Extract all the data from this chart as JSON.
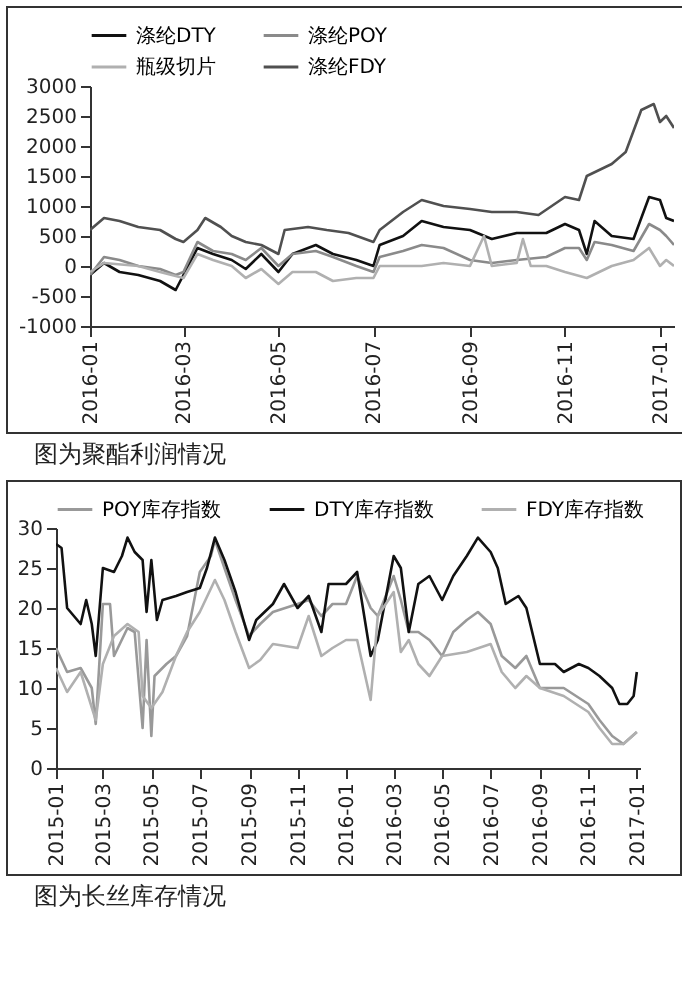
{
  "chart_data": [
    {
      "type": "line",
      "xlim": [
        "2016-01-01",
        "2017-01-10"
      ],
      "xticks": [
        "2016-01",
        "2016-03",
        "2016-05",
        "2016-07",
        "2016-09",
        "2016-11",
        "2017-01"
      ],
      "ylim": [
        -1000,
        3000
      ],
      "yticks": [
        -1000,
        -500,
        0,
        500,
        1000,
        1500,
        2000,
        2500,
        3000
      ],
      "legend": "top",
      "annotations": [
        "图为聚酯利润情况"
      ],
      "series": [
        {
          "name": "涤纶DTY",
          "color": "#111111",
          "x": [
            "2016-01-01",
            "2016-01-10",
            "2016-01-20",
            "2016-02-01",
            "2016-02-15",
            "2016-02-25",
            "2016-03-01",
            "2016-03-10",
            "2016-03-20",
            "2016-04-01",
            "2016-04-10",
            "2016-04-20",
            "2016-05-01",
            "2016-05-10",
            "2016-05-25",
            "2016-06-05",
            "2016-06-20",
            "2016-07-01",
            "2016-07-05",
            "2016-07-20",
            "2016-08-01",
            "2016-08-15",
            "2016-09-01",
            "2016-09-15",
            "2016-10-01",
            "2016-10-20",
            "2016-11-01",
            "2016-11-10",
            "2016-11-15",
            "2016-11-20",
            "2016-12-01",
            "2016-12-15",
            "2016-12-25",
            "2017-01-01",
            "2017-01-05",
            "2017-01-10"
          ],
          "values": [
            -150,
            50,
            -100,
            -150,
            -250,
            -400,
            -150,
            300,
            200,
            100,
            -50,
            200,
            -100,
            200,
            350,
            200,
            100,
            0,
            350,
            500,
            750,
            650,
            600,
            450,
            550,
            550,
            700,
            600,
            200,
            750,
            500,
            450,
            1150,
            1100,
            800,
            750
          ]
        },
        {
          "name": "涤纶POY",
          "color": "#8a8a8a",
          "x": [
            "2016-01-01",
            "2016-01-10",
            "2016-01-20",
            "2016-02-01",
            "2016-02-15",
            "2016-02-25",
            "2016-03-01",
            "2016-03-10",
            "2016-03-20",
            "2016-04-01",
            "2016-04-10",
            "2016-04-20",
            "2016-05-01",
            "2016-05-10",
            "2016-05-25",
            "2016-06-05",
            "2016-06-20",
            "2016-07-01",
            "2016-07-05",
            "2016-07-20",
            "2016-08-01",
            "2016-08-15",
            "2016-09-01",
            "2016-09-15",
            "2016-10-01",
            "2016-10-20",
            "2016-11-01",
            "2016-11-10",
            "2016-11-15",
            "2016-11-20",
            "2016-12-01",
            "2016-12-15",
            "2016-12-25",
            "2017-01-01",
            "2017-01-05",
            "2017-01-10"
          ],
          "values": [
            -150,
            150,
            100,
            0,
            -50,
            -150,
            -100,
            400,
            250,
            200,
            100,
            300,
            0,
            200,
            250,
            150,
            0,
            -100,
            150,
            250,
            350,
            300,
            100,
            50,
            100,
            150,
            300,
            300,
            100,
            400,
            350,
            250,
            700,
            600,
            500,
            350
          ]
        },
        {
          "name": "瓶级切片",
          "color": "#b0b0b0",
          "x": [
            "2016-01-01",
            "2016-01-10",
            "2016-02-01",
            "2016-02-15",
            "2016-03-01",
            "2016-03-10",
            "2016-03-20",
            "2016-04-01",
            "2016-04-10",
            "2016-04-20",
            "2016-05-01",
            "2016-05-10",
            "2016-05-25",
            "2016-06-05",
            "2016-06-20",
            "2016-07-01",
            "2016-07-05",
            "2016-07-20",
            "2016-08-01",
            "2016-08-15",
            "2016-09-01",
            "2016-09-10",
            "2016-09-15",
            "2016-10-01",
            "2016-10-05",
            "2016-10-10",
            "2016-10-20",
            "2016-11-01",
            "2016-11-15",
            "2016-12-01",
            "2016-12-15",
            "2016-12-25",
            "2017-01-01",
            "2017-01-05",
            "2017-01-10"
          ],
          "values": [
            -100,
            50,
            0,
            -100,
            -200,
            200,
            100,
            0,
            -200,
            -50,
            -300,
            -100,
            -100,
            -250,
            -200,
            -200,
            0,
            0,
            0,
            50,
            0,
            500,
            0,
            50,
            450,
            0,
            0,
            -100,
            -200,
            0,
            100,
            300,
            0,
            100,
            0
          ]
        },
        {
          "name": "涤纶FDY",
          "color": "#505050",
          "x": [
            "2016-01-01",
            "2016-01-10",
            "2016-01-20",
            "2016-02-01",
            "2016-02-15",
            "2016-02-25",
            "2016-03-01",
            "2016-03-10",
            "2016-03-15",
            "2016-03-25",
            "2016-04-01",
            "2016-04-10",
            "2016-04-20",
            "2016-05-01",
            "2016-05-05",
            "2016-05-20",
            "2016-06-01",
            "2016-06-15",
            "2016-07-01",
            "2016-07-05",
            "2016-07-20",
            "2016-08-01",
            "2016-08-15",
            "2016-09-01",
            "2016-09-15",
            "2016-10-01",
            "2016-10-15",
            "2016-11-01",
            "2016-11-10",
            "2016-11-15",
            "2016-12-01",
            "2016-12-10",
            "2016-12-20",
            "2016-12-28",
            "2017-01-01",
            "2017-01-05",
            "2017-01-10"
          ],
          "values": [
            600,
            800,
            750,
            650,
            600,
            450,
            400,
            600,
            800,
            650,
            500,
            400,
            350,
            200,
            600,
            650,
            600,
            550,
            400,
            600,
            900,
            1100,
            1000,
            950,
            900,
            900,
            850,
            1150,
            1100,
            1500,
            1700,
            1900,
            2600,
            2700,
            2400,
            2500,
            2300
          ]
        }
      ]
    },
    {
      "type": "line",
      "xlim": [
        "2015-01-01",
        "2017-01-05"
      ],
      "xticks": [
        "2015-01",
        "2015-03",
        "2015-05",
        "2015-07",
        "2015-09",
        "2015-11",
        "2016-01",
        "2016-03",
        "2016-05",
        "2016-07",
        "2016-09",
        "2016-11",
        "2017-01"
      ],
      "ylim": [
        0,
        30
      ],
      "yticks": [
        0,
        5,
        10,
        15,
        20,
        25,
        30
      ],
      "legend": "top",
      "annotations": [
        "图为长丝库存情况"
      ],
      "series": [
        {
          "name": "POY库存指数",
          "color": "#999999",
          "x": [
            "2015-01-01",
            "2015-01-15",
            "2015-02-01",
            "2015-02-15",
            "2015-02-20",
            "2015-03-01",
            "2015-03-10",
            "2015-03-15",
            "2015-04-01",
            "2015-04-10",
            "2015-04-20",
            "2015-04-25",
            "2015-05-01",
            "2015-05-05",
            "2015-05-20",
            "2015-06-01",
            "2015-06-15",
            "2015-07-01",
            "2015-07-15",
            "2015-07-20",
            "2015-08-01",
            "2015-08-15",
            "2015-09-01",
            "2015-09-15",
            "2015-10-01",
            "2015-11-01",
            "2015-11-15",
            "2015-12-01",
            "2015-12-15",
            "2016-01-01",
            "2016-01-15",
            "2016-02-01",
            "2016-02-10",
            "2016-03-01",
            "2016-03-10",
            "2016-03-20",
            "2016-04-01",
            "2016-04-15",
            "2016-05-01",
            "2016-05-15",
            "2016-06-01",
            "2016-06-15",
            "2016-07-01",
            "2016-07-15",
            "2016-08-01",
            "2016-08-15",
            "2016-09-01",
            "2016-10-01",
            "2016-11-01",
            "2016-11-15",
            "2016-12-01",
            "2016-12-15",
            "2017-01-01"
          ],
          "values": [
            15,
            12,
            12.5,
            10,
            5.5,
            20.5,
            20.5,
            14,
            17.5,
            17,
            5,
            16,
            4,
            11.5,
            13,
            14,
            16.5,
            24.5,
            26.5,
            28.5,
            25,
            21,
            16.5,
            18,
            19.5,
            20.5,
            21,
            19,
            20.5,
            20.5,
            24,
            20,
            19,
            24,
            21,
            17,
            17,
            16,
            14,
            17,
            18.5,
            19.5,
            18,
            14,
            12.5,
            14,
            10,
            10,
            8,
            6,
            4,
            3,
            4.5
          ]
        },
        {
          "name": "DTY库存指数",
          "color": "#111111",
          "x": [
            "2015-01-01",
            "2015-01-08",
            "2015-01-15",
            "2015-02-01",
            "2015-02-08",
            "2015-02-15",
            "2015-02-20",
            "2015-03-01",
            "2015-03-15",
            "2015-03-25",
            "2015-04-01",
            "2015-04-10",
            "2015-04-20",
            "2015-04-25",
            "2015-05-01",
            "2015-05-08",
            "2015-05-15",
            "2015-06-01",
            "2015-06-15",
            "2015-07-01",
            "2015-07-10",
            "2015-07-20",
            "2015-08-01",
            "2015-08-15",
            "2015-09-01",
            "2015-09-10",
            "2015-10-01",
            "2015-10-15",
            "2015-11-01",
            "2015-11-15",
            "2015-12-01",
            "2015-12-10",
            "2016-01-01",
            "2016-01-15",
            "2016-02-01",
            "2016-02-10",
            "2016-03-01",
            "2016-03-10",
            "2016-03-20",
            "2016-04-01",
            "2016-04-15",
            "2016-05-01",
            "2016-05-15",
            "2016-06-01",
            "2016-06-15",
            "2016-07-01",
            "2016-07-10",
            "2016-07-20",
            "2016-08-05",
            "2016-08-15",
            "2016-09-01",
            "2016-09-20",
            "2016-10-01",
            "2016-10-20",
            "2016-11-01",
            "2016-11-15",
            "2016-12-01",
            "2016-12-10",
            "2016-12-20",
            "2016-12-28",
            "2017-01-01"
          ],
          "values": [
            28,
            27.5,
            20,
            18,
            21,
            18,
            14,
            25,
            24.5,
            26.5,
            28.8,
            27,
            26,
            19.5,
            26,
            18.5,
            21,
            21.5,
            22,
            22.5,
            25,
            28.8,
            26,
            22,
            16,
            18.5,
            20.5,
            23,
            20,
            21.5,
            17,
            23,
            23,
            24.5,
            14,
            16,
            26.5,
            25,
            17,
            23,
            24,
            21,
            24,
            26.5,
            28.8,
            27,
            25,
            20.5,
            21.5,
            20,
            13,
            13,
            12,
            13,
            12.5,
            11.5,
            10,
            8,
            8,
            9,
            12
          ]
        },
        {
          "name": "FDY库存指数",
          "color": "#b0b0b0",
          "x": [
            "2015-01-01",
            "2015-01-15",
            "2015-02-01",
            "2015-02-20",
            "2015-03-01",
            "2015-03-15",
            "2015-04-01",
            "2015-04-15",
            "2015-04-20",
            "2015-05-01",
            "2015-05-15",
            "2015-06-01",
            "2015-06-15",
            "2015-07-01",
            "2015-07-20",
            "2015-08-01",
            "2015-08-15",
            "2015-09-01",
            "2015-09-15",
            "2015-10-01",
            "2015-11-01",
            "2015-11-15",
            "2015-12-01",
            "2015-12-15",
            "2016-01-01",
            "2016-01-15",
            "2016-02-01",
            "2016-02-10",
            "2016-03-01",
            "2016-03-10",
            "2016-03-20",
            "2016-04-01",
            "2016-04-15",
            "2016-05-01",
            "2016-06-01",
            "2016-07-01",
            "2016-07-15",
            "2016-08-01",
            "2016-08-15",
            "2016-09-01",
            "2016-10-01",
            "2016-11-01",
            "2016-11-15",
            "2016-12-01",
            "2016-12-15",
            "2017-01-01"
          ],
          "values": [
            12.5,
            9.5,
            12,
            6,
            13,
            16.5,
            18,
            17,
            9,
            7.5,
            9.5,
            14,
            17,
            19.5,
            23.5,
            21,
            17,
            12.5,
            13.5,
            15.5,
            15,
            19,
            14,
            15,
            16,
            16,
            8.5,
            19,
            22,
            14.5,
            16,
            13,
            11.5,
            14,
            14.5,
            15.5,
            12,
            10,
            11.5,
            10,
            9,
            7,
            5,
            3,
            3,
            4.5
          ]
        }
      ]
    }
  ]
}
